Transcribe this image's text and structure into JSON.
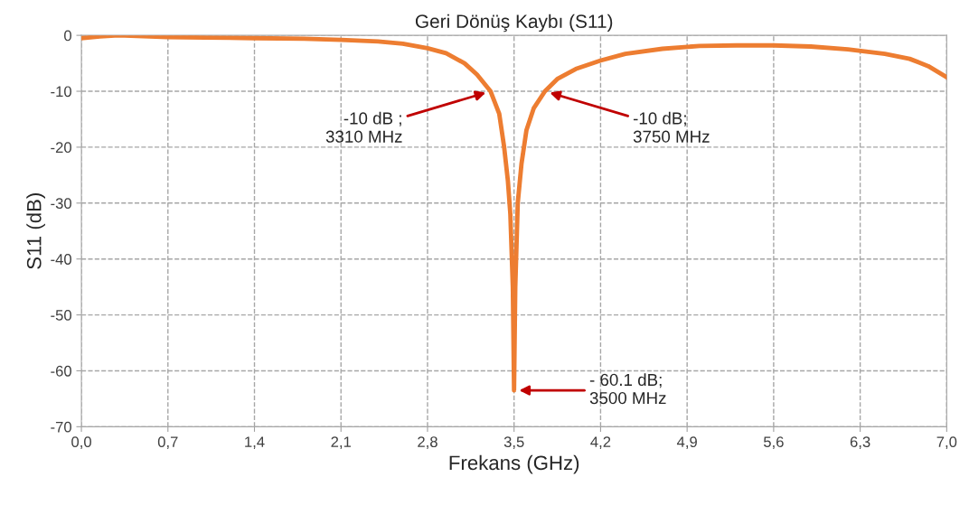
{
  "chart_data": {
    "type": "line",
    "title": "Geri Dönüş Kaybı (S11)",
    "xlabel": "Frekans (GHz)",
    "ylabel": "S11 (dB)",
    "x": [
      0.0,
      0.15,
      0.3,
      0.7,
      1.0,
      1.4,
      1.8,
      2.1,
      2.4,
      2.6,
      2.8,
      2.95,
      3.1,
      3.2,
      3.31,
      3.38,
      3.42,
      3.45,
      3.47,
      3.49,
      3.5,
      3.51,
      3.53,
      3.56,
      3.6,
      3.66,
      3.75,
      3.85,
      4.0,
      4.2,
      4.4,
      4.7,
      5.0,
      5.3,
      5.6,
      5.9,
      6.2,
      6.5,
      6.7,
      6.85,
      7.0
    ],
    "series": [
      {
        "color": "#ed7d31",
        "values": [
          -0.5,
          -0.2,
          0.0,
          -0.3,
          -0.4,
          -0.5,
          -0.6,
          -0.8,
          -1.1,
          -1.5,
          -2.3,
          -3.2,
          -5.0,
          -7.0,
          -10.0,
          -14.0,
          -20.0,
          -26.0,
          -32.0,
          -45.0,
          -63.5,
          -45.0,
          -30.0,
          -23.0,
          -17.0,
          -13.0,
          -10.0,
          -7.8,
          -6.0,
          -4.5,
          -3.3,
          -2.4,
          -1.9,
          -1.8,
          -1.8,
          -2.0,
          -2.5,
          -3.3,
          -4.2,
          -5.5,
          -7.5
        ]
      }
    ],
    "xlim": [
      0,
      7
    ],
    "ylim": [
      -70,
      0
    ],
    "xticks": [
      {
        "value": 0,
        "label": "0,0"
      },
      {
        "value": 0.7,
        "label": "0,7"
      },
      {
        "value": 1.4,
        "label": "1,4"
      },
      {
        "value": 2.1,
        "label": "2,1"
      },
      {
        "value": 2.8,
        "label": "2,8"
      },
      {
        "value": 3.5,
        "label": "3,5"
      },
      {
        "value": 4.2,
        "label": "4,2"
      },
      {
        "value": 4.9,
        "label": "4,9"
      },
      {
        "value": 5.6,
        "label": "5,6"
      },
      {
        "value": 6.3,
        "label": "6,3"
      },
      {
        "value": 7.0,
        "label": "7,0"
      }
    ],
    "yticks": [
      -70,
      -60,
      -50,
      -40,
      -30,
      -20,
      -10,
      0
    ],
    "grid": true,
    "line_style": "solid",
    "marker": "none",
    "annotations": [
      {
        "text": "-10 dB ;\n3310 MHz",
        "x": 3.31,
        "y": -10
      },
      {
        "text": "-10 dB;\n3750 MHz",
        "x": 3.75,
        "y": -10
      },
      {
        "text": "- 60.1 dB;\n3500 MHz",
        "x": 3.5,
        "y": -63.5
      }
    ]
  }
}
